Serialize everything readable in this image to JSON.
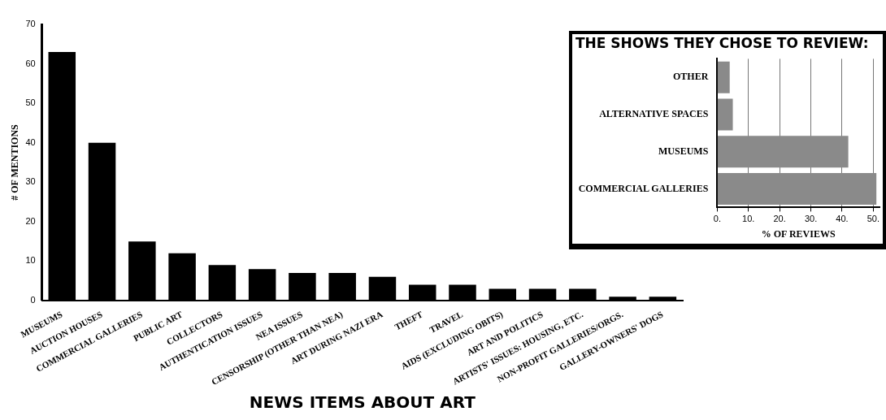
{
  "chart_data": [
    {
      "type": "bar",
      "xlabel": "NEWS ITEMS ABOUT ART",
      "ylabel": "# OF MENTIONS",
      "categories": [
        "MUSEUMS",
        "AUCTION HOUSES",
        "COMMERCIAL GALLERIES",
        "PUBLIC ART",
        "COLLECTORS",
        "AUTHENTICATION ISSUES",
        "NEA ISSUES",
        "CENSORSHIP (OTHER THAN NEA)",
        "ART DURING NAZI ERA",
        "THEFT",
        "TRAVEL",
        "AIDS (EXCLUDING OBITS)",
        "ART AND POLITICS",
        "ARTISTS' ISSUES: HOUSING, ETC.",
        "NON-PROFIT GALLERIES/ORGS.",
        "GALLERY-OWNERS' DOGS"
      ],
      "values": [
        63,
        40,
        15,
        12,
        9,
        8,
        7,
        7,
        6,
        4,
        4,
        3,
        3,
        3,
        1,
        1
      ],
      "color": "#000000",
      "ylim": [
        0,
        70
      ],
      "yticks": [
        0,
        10,
        20,
        30,
        40,
        50,
        60,
        70
      ],
      "grid": false
    },
    {
      "type": "bar",
      "orientation": "horizontal",
      "title": "THE SHOWS THEY CHOSE TO REVIEW:",
      "xlabel": "% OF REVIEWS",
      "categories": [
        "OTHER",
        "ALTERNATIVE SPACES",
        "MUSEUMS",
        "COMMERCIAL GALLERIES"
      ],
      "values": [
        4,
        5,
        42,
        51
      ],
      "color": "#8a8a8a",
      "xlim": [
        0,
        52
      ],
      "xticks": [
        {
          "value": 0,
          "label": "0."
        },
        {
          "value": 10,
          "label": "10."
        },
        {
          "value": 20,
          "label": "20."
        },
        {
          "value": 30,
          "label": "30."
        },
        {
          "value": 40,
          "label": "40."
        },
        {
          "value": 50,
          "label": "50."
        }
      ],
      "grid": "x"
    }
  ]
}
